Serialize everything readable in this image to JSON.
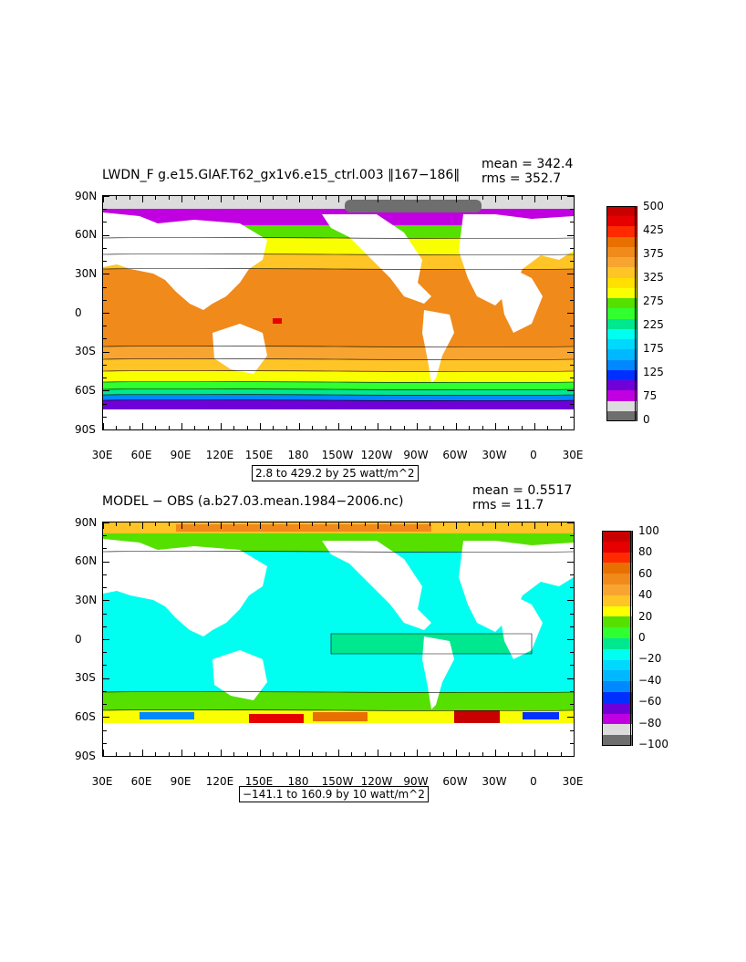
{
  "top": {
    "title": "LWDN_F g.e15.GIAF.T62_gx1v6.e15_ctrl.003 ‖167−186‖",
    "mean": "mean = 342.4",
    "rms": "rms = 352.7",
    "range": "2.8 to 429.2 by 25 watt/m^2",
    "colorbar_labels": [
      "500",
      "425",
      "375",
      "325",
      "275",
      "225",
      "175",
      "125",
      "75",
      "0"
    ],
    "colors": [
      "#c80000",
      "#e60000",
      "#ff2a00",
      "#e87000",
      "#f08a1a",
      "#f7a530",
      "#ffc425",
      "#ffe000",
      "#f9ff00",
      "#55e000",
      "#30ff30",
      "#00e88f",
      "#00fff0",
      "#00d8ff",
      "#00b8ff",
      "#0088ff",
      "#0030ff",
      "#7000d8",
      "#c000e0",
      "#dcdcdc",
      "#6e6e6e"
    ]
  },
  "bottom": {
    "title": "MODEL − OBS (a.b27.03.mean.1984−2006.nc)",
    "mean": "mean = 0.5517",
    "rms": "rms = 11.7",
    "range": "−141.1 to 160.9 by 10 watt/m^2",
    "colorbar_labels": [
      "100",
      "80",
      "60",
      "40",
      "20",
      "0",
      "−20",
      "−40",
      "−60",
      "−80",
      "−100"
    ],
    "colors": [
      "#c80000",
      "#e60000",
      "#ff2a00",
      "#e87000",
      "#f08a1a",
      "#f7a530",
      "#ffc425",
      "#ffff00",
      "#55e000",
      "#30ff30",
      "#00e88f",
      "#00fff0",
      "#00d8ff",
      "#00b8ff",
      "#0088ff",
      "#0030ff",
      "#7000d8",
      "#c000e0",
      "#dcdcdc",
      "#6e6e6e"
    ]
  },
  "axes": {
    "lat_labels": [
      "90N",
      "60N",
      "30N",
      "0",
      "30S",
      "60S",
      "90S"
    ],
    "lon_labels": [
      "30E",
      "60E",
      "90E",
      "120E",
      "150E",
      "180",
      "150W",
      "120W",
      "90W",
      "60W",
      "30W",
      "0",
      "30E"
    ]
  }
}
